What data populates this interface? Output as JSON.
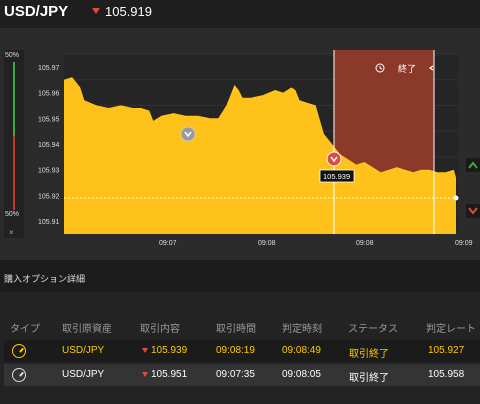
{
  "header": {
    "pair": "USD/JPY",
    "rate": "105.919",
    "direction": "down"
  },
  "gauge": {
    "top_label": "50%",
    "bottom_label": "50%",
    "close": "×"
  },
  "chart_data": {
    "type": "area",
    "y_ticks": [
      "105.97",
      "105.96",
      "105.95",
      "105.94",
      "105.93",
      "105.92",
      "105.91"
    ],
    "x_ticks": [
      "09:07",
      "09:08",
      "09:08",
      "09:09"
    ],
    "ylim": [
      105.905,
      105.975
    ],
    "x": [
      0,
      2,
      4,
      5,
      8,
      11,
      14,
      17,
      19,
      21,
      22,
      24,
      27,
      30,
      33,
      36,
      38,
      40,
      42,
      43,
      44,
      46,
      49,
      52,
      54,
      56,
      57,
      58,
      60,
      62,
      64,
      66,
      68,
      70,
      72,
      74,
      76,
      78,
      80,
      82,
      84,
      86,
      88,
      90,
      92,
      94,
      96,
      98,
      100
    ],
    "values": [
      105.965,
      105.966,
      105.962,
      105.957,
      105.955,
      105.954,
      105.955,
      105.954,
      105.954,
      105.953,
      105.949,
      105.951,
      105.952,
      105.951,
      105.951,
      105.95,
      105.95,
      105.955,
      105.963,
      105.961,
      105.958,
      105.958,
      105.959,
      105.961,
      105.96,
      105.962,
      105.961,
      105.957,
      105.956,
      105.955,
      105.944,
      105.94,
      105.936,
      105.934,
      105.932,
      105.933,
      105.931,
      105.929,
      105.93,
      105.931,
      105.93,
      105.929,
      105.93,
      105.93,
      105.929,
      105.929,
      105.93,
      105.927,
      105.919
    ],
    "current_rate_label": "105.939",
    "expiry_label": "終了",
    "reference_line": 105.919
  },
  "section_title": "購入オプション詳細",
  "table": {
    "headers": [
      "タイプ",
      "取引原資産",
      "取引内容",
      "取引時間",
      "判定時刻",
      "ステータス",
      "判定レート"
    ],
    "rows": [
      [
        "",
        "USD/JPY",
        "105.939",
        "09:08:19",
        "09:08:49",
        "取引終了",
        "105.927"
      ],
      [
        "",
        "USD/JPY",
        "105.951",
        "09:07:35",
        "09:08:05",
        "取引終了",
        "105.958"
      ]
    ]
  },
  "colors": {
    "area": "#ffc21a",
    "line": "#ffcc33",
    "expiry_band": "#8b3a2a",
    "down": "#e04a3f",
    "up": "#3fa64a"
  }
}
